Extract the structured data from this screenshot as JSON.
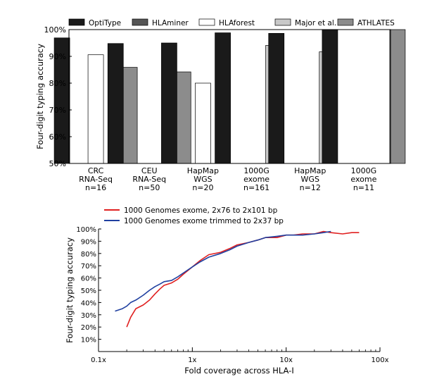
{
  "chart_data": [
    {
      "type": "bar",
      "ylabel": "Four-digit typing accuracy",
      "ylim": [
        50,
        100
      ],
      "yticks": [
        50,
        60,
        70,
        80,
        90,
        100
      ],
      "ytick_labels": [
        "50%",
        "60%",
        "70%",
        "80%",
        "90%",
        "100%"
      ],
      "legend_position": "top",
      "categories": [
        [
          "CRC",
          "RNA-Seq",
          "n=16"
        ],
        [
          "CEU",
          "RNA-Seq",
          "n=50"
        ],
        [
          "HapMap",
          "WGS",
          "n=20"
        ],
        [
          "1000G",
          "exome",
          "n=161"
        ],
        [
          "HapMap",
          "WGS",
          "n=12"
        ],
        [
          "1000G",
          "exome",
          "n=11"
        ]
      ],
      "series": [
        {
          "name": "OptiType",
          "color": "#1a1a1a",
          "values": [
            96.9,
            94.8,
            95.0,
            98.8,
            98.6,
            100
          ]
        },
        {
          "name": "HLAminer",
          "color": "#555555",
          "values": [
            null,
            null,
            null,
            null,
            null,
            null
          ]
        },
        {
          "name": "HLAforest",
          "color": "#ffffff",
          "values": [
            90.6,
            null,
            80.0,
            null,
            null,
            null
          ]
        },
        {
          "name": "Major et al.",
          "color": "#c8c8c8",
          "values": [
            null,
            null,
            null,
            94.1,
            91.7,
            null
          ]
        },
        {
          "name": "ATHLATES",
          "color": "#8c8c8c",
          "values": [
            85.9,
            84.2,
            null,
            null,
            null,
            100
          ]
        }
      ]
    },
    {
      "type": "line",
      "xscale": "log",
      "xlabel": "Fold coverage across HLA-I",
      "ylabel": "Four-digit typing accuracy",
      "xlim": [
        0.1,
        100
      ],
      "ylim": [
        0,
        100
      ],
      "xticks": [
        0.1,
        1,
        10,
        100
      ],
      "xtick_labels": [
        "0.1x",
        "1x",
        "10x",
        "100x"
      ],
      "yticks": [
        10,
        20,
        30,
        40,
        50,
        60,
        70,
        80,
        90,
        100
      ],
      "ytick_labels": [
        "10%",
        "20%",
        "30%",
        "40%",
        "50%",
        "60%",
        "70%",
        "80%",
        "90%",
        "100%"
      ],
      "legend_position": "top-left",
      "series": [
        {
          "name": "1000 Genomes exome, 2x76 to 2x101 bp",
          "color": "#e02020",
          "x": [
            0.2,
            0.22,
            0.25,
            0.3,
            0.35,
            0.4,
            0.45,
            0.5,
            0.6,
            0.7,
            0.8,
            1.0,
            1.2,
            1.5,
            2,
            2.5,
            3,
            4,
            5,
            6,
            8,
            10,
            12,
            15,
            20,
            25,
            30,
            40,
            50,
            60
          ],
          "y": [
            20,
            28,
            35,
            38,
            42,
            47,
            51,
            54,
            56,
            59,
            63,
            69,
            74,
            79,
            81,
            84,
            87,
            89,
            91,
            93,
            93,
            95,
            95,
            96,
            96,
            98,
            97,
            96,
            97,
            97
          ]
        },
        {
          "name": "1000 Genomes exome trimmed to 2x37 bp",
          "color": "#2040a0",
          "x": [
            0.15,
            0.18,
            0.2,
            0.22,
            0.25,
            0.3,
            0.35,
            0.4,
            0.45,
            0.5,
            0.6,
            0.7,
            0.8,
            1.0,
            1.2,
            1.5,
            2,
            2.5,
            3,
            4,
            5,
            6,
            8,
            10,
            12,
            15,
            20,
            25,
            30
          ],
          "y": [
            33,
            35,
            37,
            40,
            42,
            46,
            50,
            53,
            55,
            57,
            58,
            61,
            64,
            69,
            73,
            77,
            80,
            83,
            86,
            89,
            91,
            93,
            94,
            95,
            95,
            95,
            96,
            97,
            98
          ]
        }
      ]
    }
  ]
}
